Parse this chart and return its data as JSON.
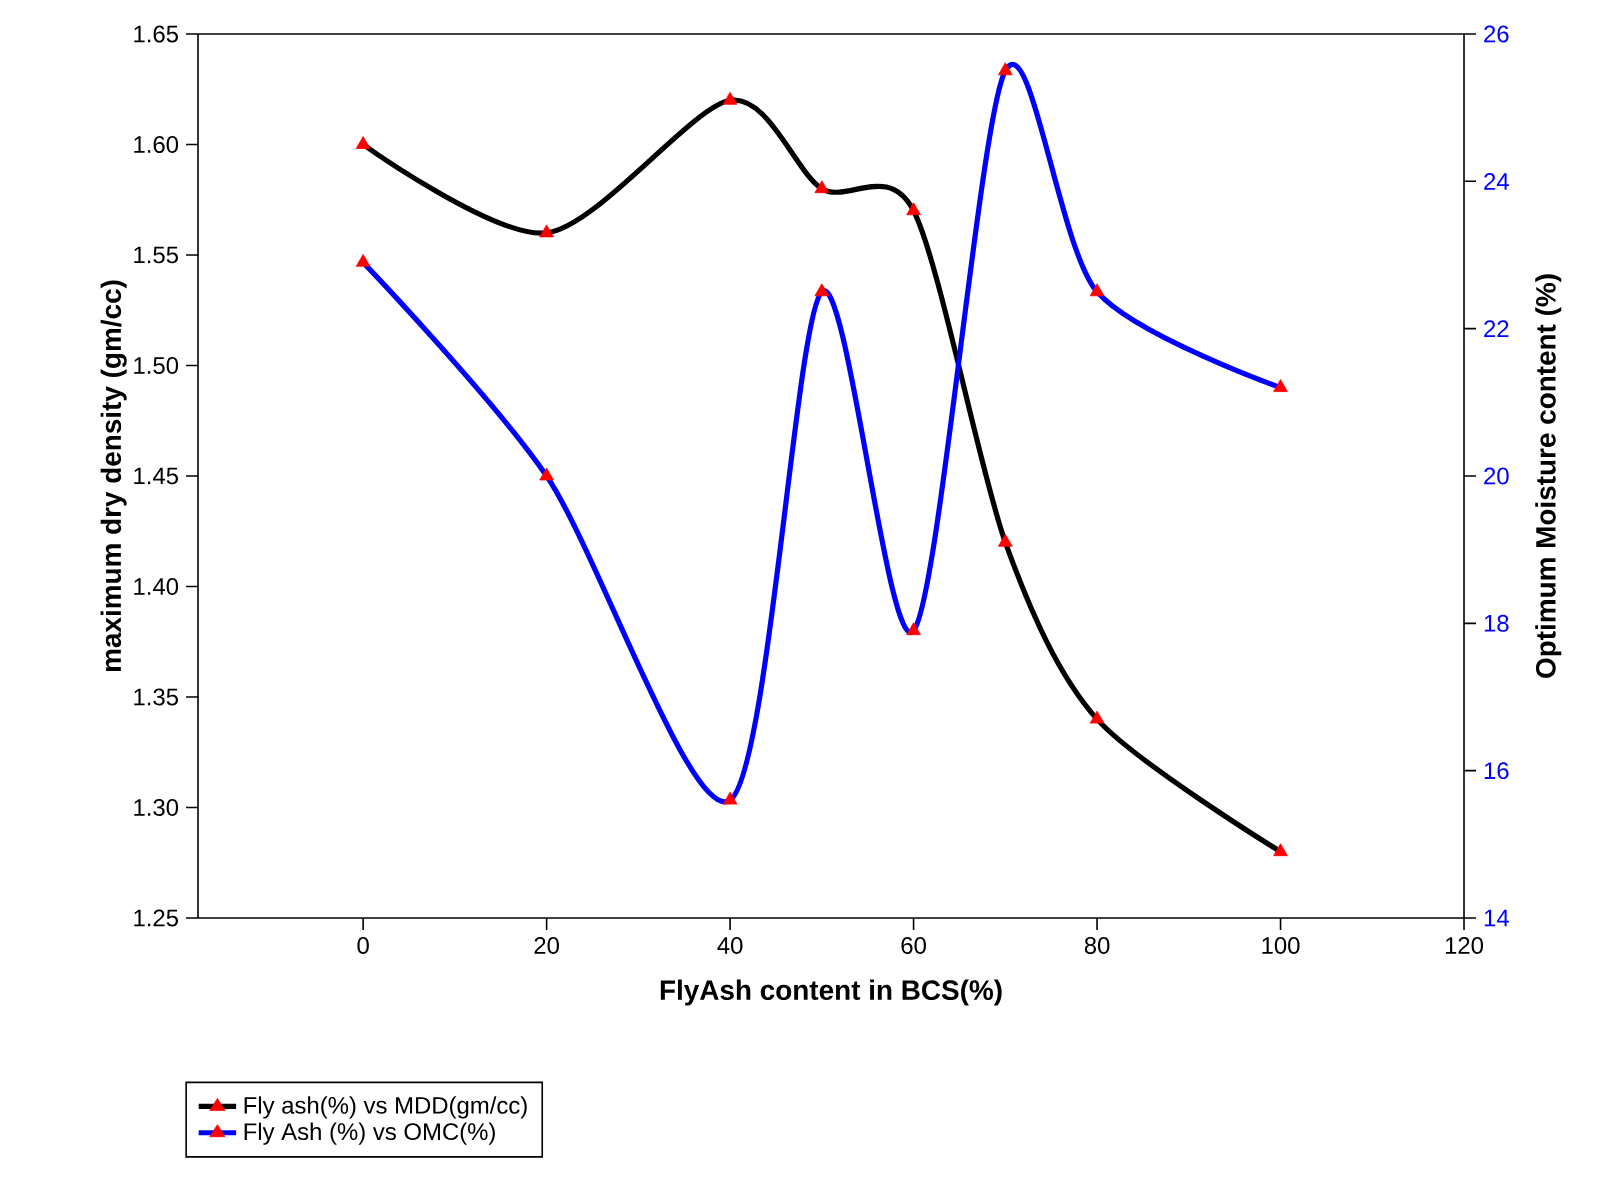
{
  "chart_data": {
    "type": "line",
    "xlabel": "FlyAsh content in BCS(%)",
    "ylabel": "maximum dry density (gm/cc)",
    "y2label": "Optimum Moisture content (%)",
    "x": [
      0,
      20,
      40,
      50,
      60,
      70,
      80,
      100
    ],
    "series": [
      {
        "name": "Fly ash(%) vs MDD(gm/cc)",
        "color": "#000000",
        "values": [
          1.6,
          1.56,
          1.62,
          1.58,
          1.57,
          1.42,
          1.34,
          1.28
        ]
      },
      {
        "name": "Fly Ash (%) vs OMC(%)",
        "color": "#0000ff",
        "axis": "y2",
        "values": [
          22.9,
          20.0,
          15.6,
          22.5,
          17.9,
          25.5,
          22.5,
          21.2
        ]
      }
    ],
    "xlim": [
      -18,
      120
    ],
    "xticks": [
      0,
      20,
      40,
      60,
      80,
      100,
      120
    ],
    "ylim": [
      1.25,
      1.65
    ],
    "yticks": [
      {
        "value": 1.25,
        "label": "1.25"
      },
      {
        "value": 1.3,
        "label": "1.30"
      },
      {
        "value": 1.35,
        "label": "1.35"
      },
      {
        "value": 1.4,
        "label": "1.40"
      },
      {
        "value": 1.45,
        "label": "1.45"
      },
      {
        "value": 1.5,
        "label": "1.50"
      },
      {
        "value": 1.55,
        "label": "1.55"
      },
      {
        "value": 1.6,
        "label": "1.60"
      },
      {
        "value": 1.65,
        "label": "1.65"
      }
    ],
    "y2lim": [
      14,
      26
    ],
    "y2ticks": [
      14,
      16,
      18,
      20,
      22,
      24,
      26
    ],
    "grid": false,
    "legend": "bottom left",
    "marker": "triangle",
    "line_style": "solid"
  }
}
